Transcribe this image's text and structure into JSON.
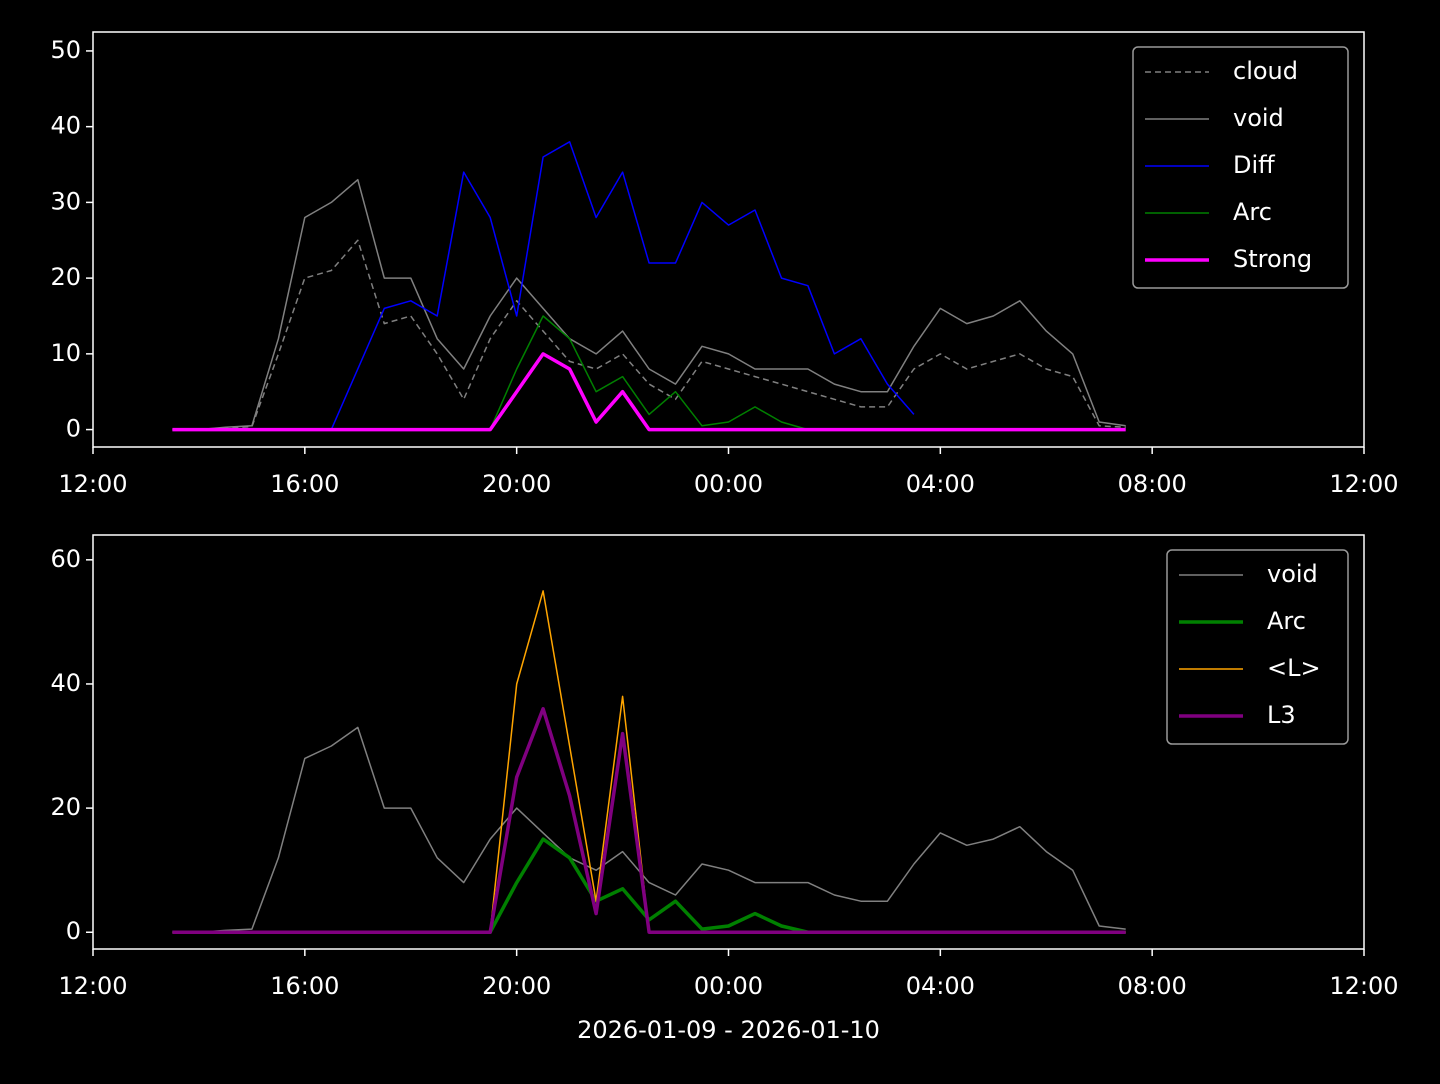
{
  "chart_data": [
    {
      "type": "line",
      "legend": "upper right",
      "x": [
        "2026-01-09T13:30",
        "2026-01-09T14:00",
        "2026-01-09T14:30",
        "2026-01-09T15:00",
        "2026-01-09T15:30",
        "2026-01-09T16:00",
        "2026-01-09T16:30",
        "2026-01-09T17:00",
        "2026-01-09T17:30",
        "2026-01-09T18:00",
        "2026-01-09T18:30",
        "2026-01-09T19:00",
        "2026-01-09T19:30",
        "2026-01-09T20:00",
        "2026-01-09T20:30",
        "2026-01-09T21:00",
        "2026-01-09T21:30",
        "2026-01-09T22:00",
        "2026-01-09T22:30",
        "2026-01-09T23:00",
        "2026-01-09T23:30",
        "2026-01-10T00:00",
        "2026-01-10T00:30",
        "2026-01-10T01:00",
        "2026-01-10T01:30",
        "2026-01-10T02:00",
        "2026-01-10T02:30",
        "2026-01-10T03:00",
        "2026-01-10T03:30",
        "2026-01-10T04:00",
        "2026-01-10T04:30",
        "2026-01-10T05:00",
        "2026-01-10T05:30",
        "2026-01-10T06:00",
        "2026-01-10T06:30",
        "2026-01-10T07:00",
        "2026-01-10T07:30"
      ],
      "xlim": [
        "2026-01-09T12:00",
        "2026-01-10T12:00"
      ],
      "xticks": [
        {
          "value": "2026-01-09T12:00",
          "label": "12:00"
        },
        {
          "value": "2026-01-09T16:00",
          "label": "16:00"
        },
        {
          "value": "2026-01-09T20:00",
          "label": "20:00"
        },
        {
          "value": "2026-01-10T00:00",
          "label": "00:00"
        },
        {
          "value": "2026-01-10T04:00",
          "label": "04:00"
        },
        {
          "value": "2026-01-10T08:00",
          "label": "08:00"
        },
        {
          "value": "2026-01-10T12:00",
          "label": "12:00"
        }
      ],
      "ylim": [
        -2.3,
        52.5
      ],
      "yticks": [
        0,
        10,
        20,
        30,
        40,
        50
      ],
      "series": [
        {
          "name": "cloud",
          "color": "#808080",
          "dash": true,
          "linewidth": 1.5,
          "values": [
            0,
            0,
            0.2,
            0.4,
            10,
            20,
            21,
            25,
            14,
            15,
            10,
            4,
            12,
            17,
            13,
            9,
            8,
            10,
            6,
            4,
            9,
            8,
            7,
            6,
            5,
            4,
            3,
            3,
            8,
            10,
            8,
            9,
            10,
            8,
            7,
            0.5,
            0.3
          ]
        },
        {
          "name": "void",
          "color": "#808080",
          "linewidth": 1.5,
          "values": [
            0,
            0,
            0.3,
            0.5,
            12,
            28,
            30,
            33,
            20,
            20,
            12,
            8,
            15,
            20,
            16,
            12,
            10,
            13,
            8,
            6,
            11,
            10,
            8,
            8,
            8,
            6,
            5,
            5,
            11,
            16,
            14,
            15,
            17,
            13,
            10,
            1,
            0.5
          ]
        },
        {
          "name": "Diff",
          "color": "#0000ff",
          "linewidth": 1.5,
          "values": [
            null,
            null,
            null,
            null,
            null,
            null,
            0,
            8,
            16,
            17,
            15,
            34,
            28,
            15,
            36,
            38,
            28,
            34,
            22,
            22,
            30,
            27,
            29,
            20,
            19,
            10,
            12,
            6,
            2,
            null,
            null,
            null,
            null,
            null,
            null,
            null,
            null
          ]
        },
        {
          "name": "Arc",
          "color": "#008000",
          "linewidth": 1.5,
          "values": [
            0,
            0,
            0,
            0,
            0,
            0,
            0,
            0,
            0,
            0,
            0,
            0,
            0,
            8,
            15,
            12,
            5,
            7,
            2,
            5,
            0.5,
            1,
            3,
            1,
            0,
            0,
            0,
            0,
            0,
            0,
            0,
            0,
            0,
            0,
            0,
            0,
            0
          ]
        },
        {
          "name": "Strong",
          "color": "#ff00ff",
          "linewidth": 3.5,
          "values": [
            0,
            0,
            0,
            0,
            0,
            0,
            0,
            0,
            0,
            0,
            0,
            0,
            0,
            5,
            10,
            8,
            1,
            5,
            0,
            0,
            0,
            0,
            0,
            0,
            0,
            0,
            0,
            0,
            0,
            0,
            0,
            0,
            0,
            0,
            0,
            0,
            0
          ]
        }
      ]
    },
    {
      "type": "line",
      "legend": "upper right",
      "xlabel": "2026-01-09 - 2026-01-10",
      "x": [
        "2026-01-09T13:30",
        "2026-01-09T14:00",
        "2026-01-09T14:30",
        "2026-01-09T15:00",
        "2026-01-09T15:30",
        "2026-01-09T16:00",
        "2026-01-09T16:30",
        "2026-01-09T17:00",
        "2026-01-09T17:30",
        "2026-01-09T18:00",
        "2026-01-09T18:30",
        "2026-01-09T19:00",
        "2026-01-09T19:30",
        "2026-01-09T20:00",
        "2026-01-09T20:30",
        "2026-01-09T21:00",
        "2026-01-09T21:30",
        "2026-01-09T22:00",
        "2026-01-09T22:30",
        "2026-01-09T23:00",
        "2026-01-09T23:30",
        "2026-01-10T00:00",
        "2026-01-10T00:30",
        "2026-01-10T01:00",
        "2026-01-10T01:30",
        "2026-01-10T02:00",
        "2026-01-10T02:30",
        "2026-01-10T03:00",
        "2026-01-10T03:30",
        "2026-01-10T04:00",
        "2026-01-10T04:30",
        "2026-01-10T05:00",
        "2026-01-10T05:30",
        "2026-01-10T06:00",
        "2026-01-10T06:30",
        "2026-01-10T07:00",
        "2026-01-10T07:30"
      ],
      "xlim": [
        "2026-01-09T12:00",
        "2026-01-10T12:00"
      ],
      "xticks": [
        {
          "value": "2026-01-09T12:00",
          "label": "12:00"
        },
        {
          "value": "2026-01-09T16:00",
          "label": "16:00"
        },
        {
          "value": "2026-01-09T20:00",
          "label": "20:00"
        },
        {
          "value": "2026-01-10T00:00",
          "label": "00:00"
        },
        {
          "value": "2026-01-10T04:00",
          "label": "04:00"
        },
        {
          "value": "2026-01-10T08:00",
          "label": "08:00"
        },
        {
          "value": "2026-01-10T12:00",
          "label": "12:00"
        }
      ],
      "ylim": [
        -2.7,
        64
      ],
      "yticks": [
        0,
        20,
        40,
        60
      ],
      "series": [
        {
          "name": "void",
          "color": "#808080",
          "linewidth": 1.5,
          "values": [
            0,
            0,
            0.3,
            0.5,
            12,
            28,
            30,
            33,
            20,
            20,
            12,
            8,
            15,
            20,
            16,
            12,
            10,
            13,
            8,
            6,
            11,
            10,
            8,
            8,
            8,
            6,
            5,
            5,
            11,
            16,
            14,
            15,
            17,
            13,
            10,
            1,
            0.5
          ]
        },
        {
          "name": "Arc",
          "color": "#008000",
          "linewidth": 3.5,
          "values": [
            0,
            0,
            0,
            0,
            0,
            0,
            0,
            0,
            0,
            0,
            0,
            0,
            0,
            8,
            15,
            12,
            5,
            7,
            2,
            5,
            0.5,
            1,
            3,
            1,
            0,
            0,
            0,
            0,
            0,
            0,
            0,
            0,
            0,
            0,
            0,
            0,
            0
          ]
        },
        {
          "name": "<L>",
          "color": "#ffa500",
          "linewidth": 1.5,
          "values": [
            0,
            0,
            0,
            0,
            0,
            0,
            0,
            0,
            0,
            0,
            0,
            0,
            0,
            40,
            55,
            30,
            5,
            38,
            0,
            0,
            0,
            0,
            0,
            0,
            0,
            0,
            0,
            0,
            0,
            0,
            0,
            0,
            0,
            0,
            0,
            0,
            0
          ]
        },
        {
          "name": "L3",
          "color": "#800080",
          "linewidth": 3.5,
          "values": [
            0,
            0,
            0,
            0,
            0,
            0,
            0,
            0,
            0,
            0,
            0,
            0,
            0,
            25,
            36,
            22,
            3,
            32,
            0,
            0,
            0,
            0,
            0,
            0,
            0,
            0,
            0,
            0,
            0,
            0,
            0,
            0,
            0,
            0,
            0,
            0,
            0
          ]
        }
      ]
    }
  ]
}
